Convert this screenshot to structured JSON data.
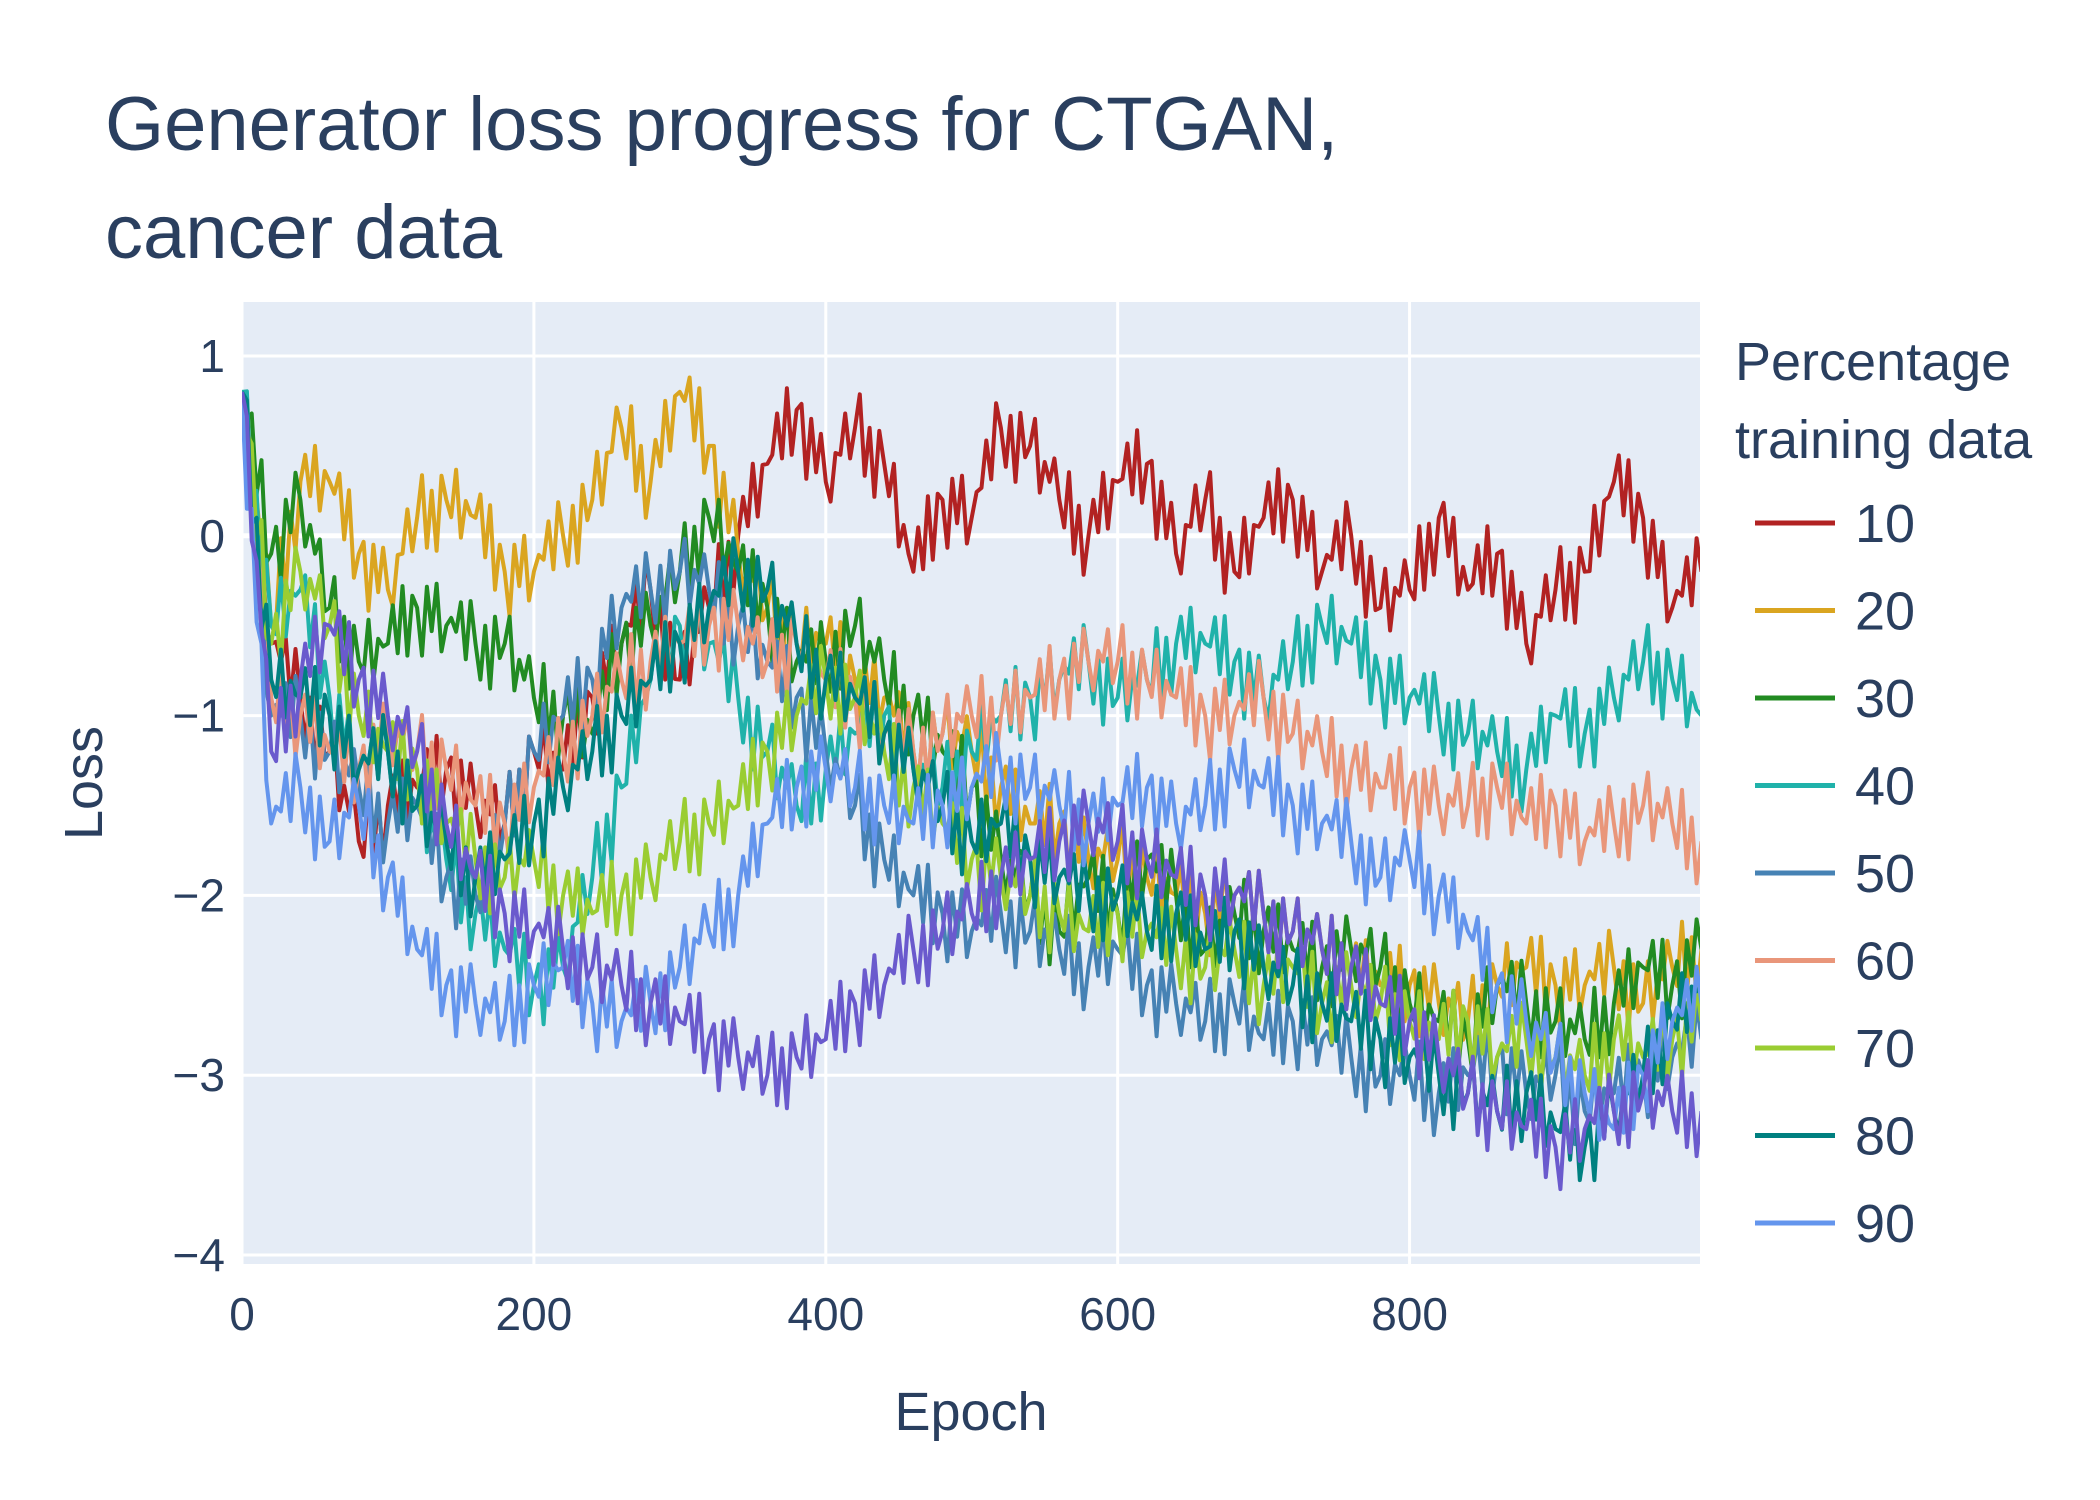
{
  "chart_data": {
    "type": "line",
    "title_lines": [
      "Generator loss progress for CTGAN,",
      "cancer data"
    ],
    "xlabel": "Epoch",
    "ylabel": "Loss",
    "xlim": [
      0,
      999
    ],
    "ylim": [
      -4.05,
      1.3
    ],
    "x_ticks": [
      0,
      200,
      400,
      600,
      800
    ],
    "x_tick_labels": [
      "0",
      "200",
      "400",
      "600",
      "800"
    ],
    "y_ticks": [
      -4,
      -3,
      -2,
      -1,
      0,
      1
    ],
    "y_tick_labels": [
      "−4",
      "−3",
      "−2",
      "−1",
      "0",
      "1"
    ],
    "grid": true,
    "legend": {
      "title_lines": [
        "Percentage",
        "training data"
      ],
      "position": "right"
    },
    "x_step": 20,
    "series": [
      {
        "name": "10",
        "color": "#b22222",
        "values": [
          0.8,
          -0.6,
          -0.9,
          -1.2,
          -1.7,
          -1.5,
          -1.4,
          -1.3,
          -1.5,
          -1.6,
          -1.2,
          -1.3,
          -0.9,
          -0.6,
          -0.3,
          -0.8,
          -0.4,
          0.0,
          0.4,
          0.7,
          0.3,
          0.6,
          0.4,
          -0.2,
          0.2,
          0.1,
          0.6,
          0.5,
          0.2,
          0.0,
          0.3,
          0.4,
          -0.1,
          0.2,
          -0.2,
          0.1,
          0.2,
          -0.2,
          0.0,
          -0.4,
          -0.3,
          0.1,
          -0.3,
          -0.1,
          -0.6,
          -0.3,
          -0.2,
          0.3,
          0.1,
          -0.4,
          -0.2
        ]
      },
      {
        "name": "20",
        "color": "#daa520",
        "values": [
          0.8,
          -0.5,
          0.3,
          0.3,
          -0.1,
          -0.3,
          0.1,
          0.2,
          0.1,
          -0.2,
          -0.2,
          0.0,
          0.2,
          0.6,
          0.3,
          0.8,
          0.5,
          -0.1,
          -0.4,
          -0.6,
          -0.6,
          -0.8,
          -0.9,
          -1.2,
          -1.1,
          -1.2,
          -1.4,
          -1.6,
          -1.6,
          -1.8,
          -1.8,
          -1.9,
          -2.0,
          -2.1,
          -2.0,
          -2.1,
          -2.2,
          -2.3,
          -2.4,
          -2.5,
          -2.5,
          -2.6,
          -2.7,
          -2.5,
          -2.4,
          -2.5,
          -2.5,
          -2.4,
          -2.6,
          -2.4,
          -2.3
        ]
      },
      {
        "name": "30",
        "color": "#228b22",
        "values": [
          0.8,
          -0.1,
          0.2,
          -0.4,
          -0.7,
          -0.6,
          -0.4,
          -0.5,
          -0.6,
          -0.6,
          -0.9,
          -1.0,
          -1.1,
          -0.6,
          -0.5,
          -0.2,
          0.1,
          -0.2,
          -0.4,
          -0.7,
          -0.7,
          -0.5,
          -0.8,
          -1.0,
          -1.2,
          -1.4,
          -1.8,
          -2.0,
          -2.2,
          -1.9,
          -2.1,
          -1.8,
          -2.0,
          -2.3,
          -2.1,
          -2.2,
          -2.3,
          -2.4,
          -2.3,
          -2.4,
          -2.6,
          -2.7,
          -2.8,
          -2.5,
          -2.6,
          -2.7,
          -2.8,
          -2.6,
          -2.4,
          -2.5,
          -2.3
        ]
      },
      {
        "name": "40",
        "color": "#20b2aa",
        "values": [
          0.8,
          -0.5,
          -0.3,
          -0.9,
          -1.3,
          -1.2,
          -1.5,
          -1.8,
          -2.1,
          -2.3,
          -2.5,
          -2.4,
          -1.9,
          -1.4,
          -0.8,
          -0.5,
          -0.6,
          -0.9,
          -1.2,
          -1.5,
          -1.3,
          -1.1,
          -1.0,
          -1.3,
          -1.4,
          -1.2,
          -1.0,
          -0.9,
          -0.8,
          -0.7,
          -0.9,
          -0.8,
          -0.6,
          -0.6,
          -0.7,
          -0.9,
          -0.7,
          -0.5,
          -0.6,
          -0.8,
          -0.9,
          -1.0,
          -1.1,
          -1.2,
          -1.3,
          -1.0,
          -1.1,
          -0.9,
          -0.7,
          -0.8,
          -1.0
        ]
      },
      {
        "name": "50",
        "color": "#4682b4",
        "values": [
          0.8,
          -1.0,
          -1.0,
          -1.2,
          -1.4,
          -1.6,
          -1.5,
          -1.9,
          -2.0,
          -1.6,
          -1.2,
          -1.0,
          -0.8,
          -0.4,
          -0.3,
          -0.2,
          -0.3,
          -0.5,
          -0.7,
          -0.9,
          -1.2,
          -1.5,
          -1.8,
          -2.0,
          -2.1,
          -2.2,
          -2.1,
          -2.2,
          -2.3,
          -2.4,
          -2.3,
          -2.5,
          -2.6,
          -2.7,
          -2.6,
          -2.8,
          -2.7,
          -2.8,
          -2.9,
          -3.0,
          -3.0,
          -3.1,
          -3.0,
          -2.9,
          -3.1,
          -3.0,
          -3.2,
          -3.1,
          -3.0,
          -2.9,
          -2.8
        ]
      },
      {
        "name": "60",
        "color": "#e9967a",
        "values": [
          0.8,
          -0.9,
          -1.0,
          -1.2,
          -1.3,
          -1.1,
          -1.2,
          -1.3,
          -1.5,
          -1.6,
          -1.4,
          -1.2,
          -1.0,
          -0.8,
          -0.7,
          -0.6,
          -0.5,
          -0.5,
          -0.7,
          -0.6,
          -0.8,
          -0.9,
          -1.1,
          -1.2,
          -1.1,
          -1.0,
          -1.0,
          -0.9,
          -0.8,
          -0.7,
          -0.7,
          -0.8,
          -0.9,
          -1.0,
          -1.0,
          -0.9,
          -1.1,
          -1.2,
          -1.3,
          -1.4,
          -1.4,
          -1.5,
          -1.5,
          -1.4,
          -1.6,
          -1.5,
          -1.7,
          -1.6,
          -1.5,
          -1.6,
          -1.7
        ]
      },
      {
        "name": "70",
        "color": "#9acd32",
        "values": [
          0.8,
          -0.6,
          -0.2,
          -0.5,
          -1.0,
          -1.2,
          -1.3,
          -1.6,
          -1.8,
          -1.9,
          -1.8,
          -2.0,
          -2.1,
          -2.0,
          -1.9,
          -1.7,
          -1.6,
          -1.5,
          -1.2,
          -1.0,
          -0.8,
          -0.9,
          -1.2,
          -1.4,
          -1.6,
          -1.8,
          -1.9,
          -2.0,
          -2.1,
          -2.2,
          -2.1,
          -2.2,
          -2.3,
          -2.4,
          -2.3,
          -2.5,
          -2.4,
          -2.6,
          -2.5,
          -2.6,
          -2.7,
          -2.8,
          -2.7,
          -2.9,
          -2.8,
          -2.9,
          -3.0,
          -2.8,
          -2.9,
          -2.8,
          -2.7
        ]
      },
      {
        "name": "80",
        "color": "#008080",
        "values": [
          0.8,
          -0.8,
          -0.9,
          -1.0,
          -1.3,
          -1.2,
          -1.5,
          -1.7,
          -1.9,
          -1.8,
          -1.6,
          -1.4,
          -1.2,
          -1.0,
          -0.8,
          -0.6,
          -0.4,
          -0.2,
          -0.3,
          -0.6,
          -0.8,
          -0.9,
          -1.1,
          -1.3,
          -1.5,
          -1.7,
          -1.6,
          -1.8,
          -1.9,
          -2.0,
          -2.0,
          -2.2,
          -2.1,
          -2.3,
          -2.2,
          -2.4,
          -2.5,
          -2.6,
          -2.7,
          -2.8,
          -2.9,
          -3.0,
          -3.1,
          -3.2,
          -3.1,
          -3.3,
          -3.4,
          -3.2,
          -3.0,
          -2.7,
          -2.5
        ]
      },
      {
        "name": "90",
        "color": "#6495ed",
        "values": [
          0.8,
          -1.6,
          -1.4,
          -1.7,
          -1.5,
          -1.9,
          -2.3,
          -2.5,
          -2.6,
          -2.7,
          -2.5,
          -2.4,
          -2.6,
          -2.7,
          -2.6,
          -2.4,
          -2.2,
          -2.0,
          -1.6,
          -1.4,
          -1.3,
          -1.4,
          -1.5,
          -1.6,
          -1.5,
          -1.4,
          -1.3,
          -1.4,
          -1.5,
          -1.6,
          -1.5,
          -1.4,
          -1.6,
          -1.5,
          -1.3,
          -1.4,
          -1.5,
          -1.6,
          -1.7,
          -1.9,
          -1.8,
          -2.0,
          -2.2,
          -2.5,
          -2.7,
          -2.9,
          -3.1,
          -3.3,
          -3.0,
          -2.7,
          -2.6
        ]
      },
      {
        "name": "",
        "color": "#6a5acd",
        "values": [
          0.8,
          -1.2,
          -0.8,
          -0.5,
          -0.8,
          -1.0,
          -1.2,
          -1.6,
          -1.9,
          -2.1,
          -2.2,
          -2.3,
          -2.4,
          -2.5,
          -2.6,
          -2.7,
          -2.8,
          -2.9,
          -3.0,
          -2.9,
          -2.8,
          -2.6,
          -2.5,
          -2.3,
          -2.2,
          -2.1,
          -1.9,
          -1.8,
          -1.7,
          -1.6,
          -1.7,
          -1.8,
          -1.9,
          -2.0,
          -2.0,
          -2.1,
          -2.2,
          -2.3,
          -2.4,
          -2.6,
          -2.7,
          -2.9,
          -3.1,
          -3.2,
          -3.3,
          -3.4,
          -3.3,
          -3.2,
          -3.1,
          -3.2,
          -3.2
        ]
      }
    ]
  }
}
